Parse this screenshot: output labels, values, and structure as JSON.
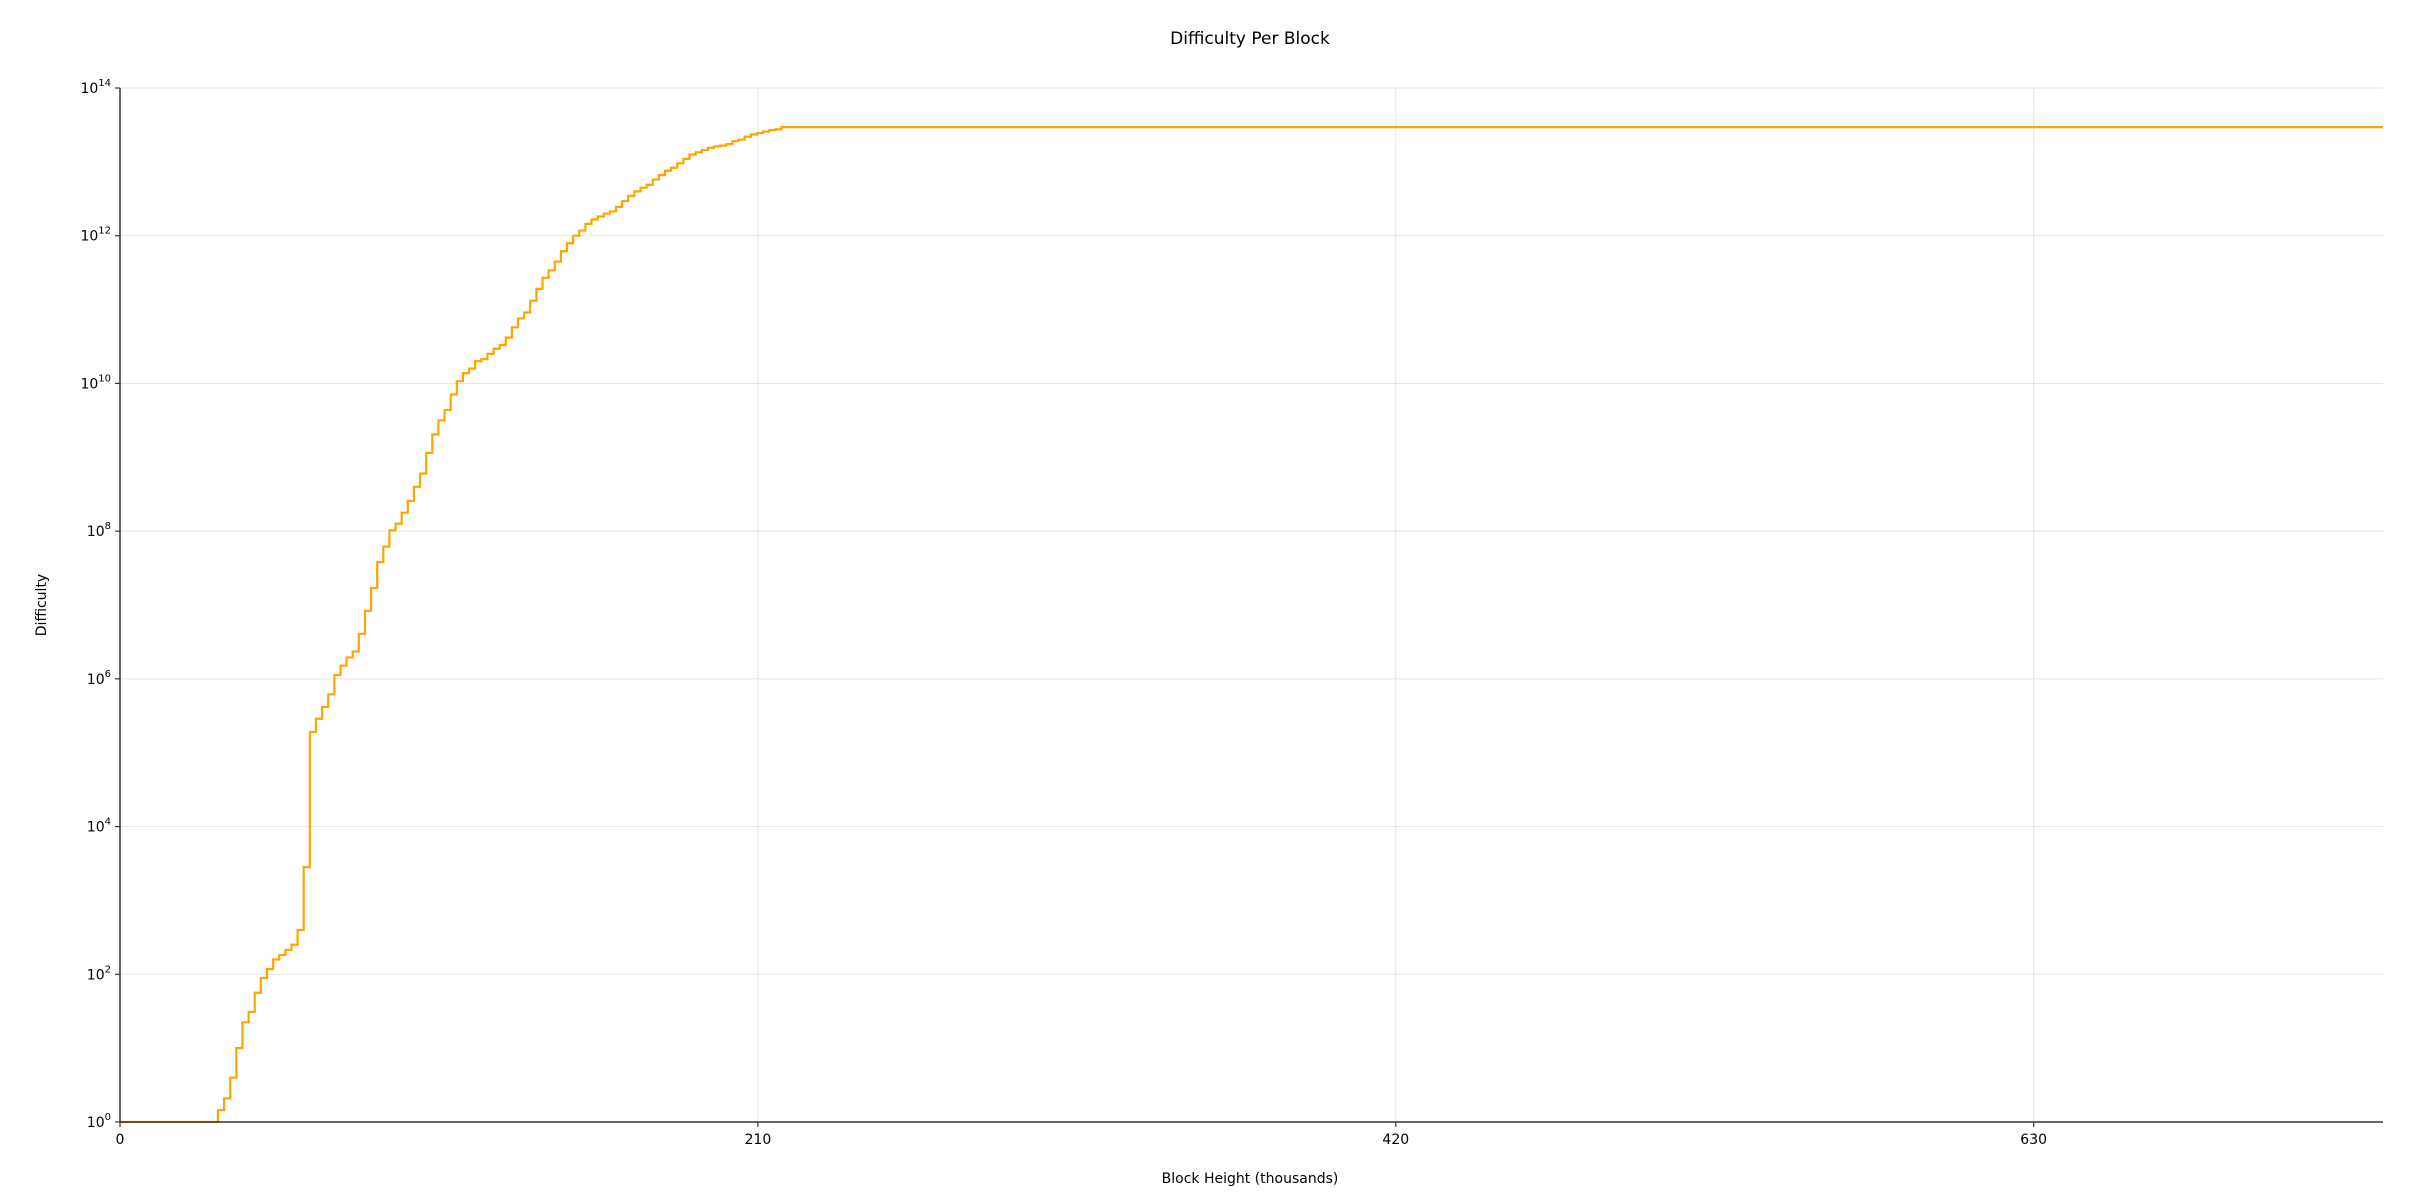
{
  "chart_data": {
    "type": "line",
    "title": "Difficulty Per Block",
    "xlabel": "Block Height (thousands)",
    "ylabel": "Difficulty",
    "y_scale": "log",
    "xlim": [
      0,
      745
    ],
    "ylim": [
      1,
      100000000000000
    ],
    "x_ticks": [
      0,
      210,
      420,
      630
    ],
    "x_tick_labels": [
      "0",
      "210",
      "420",
      "630"
    ],
    "y_ticks": [
      1,
      100,
      10000,
      1000000,
      100000000,
      10000000000,
      1000000000000,
      100000000000000
    ],
    "y_tick_labels": [
      {
        "base": "10",
        "exp": "0"
      },
      {
        "base": "10",
        "exp": "2"
      },
      {
        "base": "10",
        "exp": "4"
      },
      {
        "base": "10",
        "exp": "6"
      },
      {
        "base": "10",
        "exp": "8"
      },
      {
        "base": "10",
        "exp": "10"
      },
      {
        "base": "10",
        "exp": "12"
      },
      {
        "base": "10",
        "exp": "14"
      }
    ],
    "grid": true,
    "series_color": "#FFA500",
    "grid_color": "#E5E5E5",
    "axis_color": "#333333",
    "step_interval": 2.016,
    "log10_difficulty": [
      0,
      0,
      0,
      0,
      0,
      0,
      0,
      0,
      0,
      0,
      0,
      0,
      0,
      0,
      0,
      0,
      0.16,
      0.32,
      0.6,
      1.0,
      1.35,
      1.49,
      1.75,
      1.95,
      2.07,
      2.2,
      2.26,
      2.33,
      2.4,
      2.6,
      3.45,
      5.28,
      5.46,
      5.62,
      5.79,
      6.05,
      6.18,
      6.29,
      6.37,
      6.61,
      6.92,
      7.23,
      7.58,
      7.79,
      8.01,
      8.1,
      8.25,
      8.41,
      8.6,
      8.78,
      9.06,
      9.31,
      9.5,
      9.64,
      9.85,
      10.03,
      10.14,
      10.2,
      10.3,
      10.33,
      10.4,
      10.47,
      10.52,
      10.62,
      10.76,
      10.88,
      10.96,
      11.12,
      11.28,
      11.43,
      11.53,
      11.65,
      11.79,
      11.9,
      12.0,
      12.07,
      12.16,
      12.22,
      12.26,
      12.3,
      12.33,
      12.39,
      12.47,
      12.54,
      12.6,
      12.65,
      12.69,
      12.76,
      12.82,
      12.88,
      12.92,
      12.98,
      13.04,
      13.1,
      13.13,
      13.16,
      13.19,
      13.21,
      13.22,
      13.24,
      13.28,
      13.3,
      13.34,
      13.37,
      13.39,
      13.41,
      13.43,
      13.44,
      13.47
    ]
  }
}
